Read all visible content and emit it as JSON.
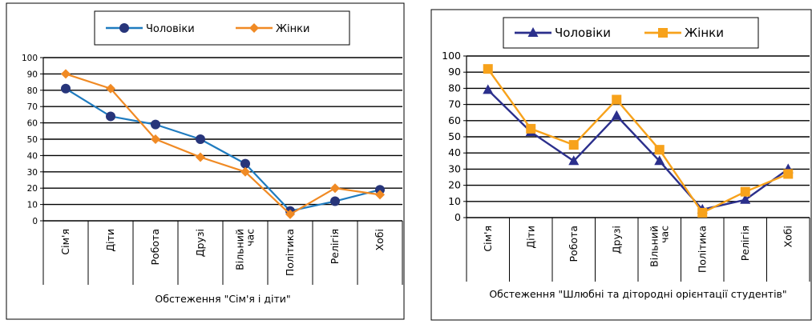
{
  "chart_data": [
    {
      "type": "line",
      "title": "",
      "xlabel": "Обстеження \"Сім'я і діти\"",
      "ylabel": "",
      "ylim": [
        0,
        100
      ],
      "yticks": [
        0,
        10,
        20,
        30,
        40,
        50,
        60,
        70,
        80,
        90,
        100
      ],
      "categories": [
        "Сім'я",
        "Діти",
        "Робота",
        "Друзі",
        "Вільний час",
        "Політика",
        "Релігія",
        "Хобі"
      ],
      "category_lines": [
        [
          "Сім'я"
        ],
        [
          "Діти"
        ],
        [
          "Робота"
        ],
        [
          "Друзі"
        ],
        [
          "Вільний",
          "час"
        ],
        [
          "Політика"
        ],
        [
          "Релігія"
        ],
        [
          "Хобі"
        ]
      ],
      "legend_position": "top",
      "grid": true,
      "series": [
        {
          "name": "Чоловіки",
          "color": "#1f7bbf",
          "marker": "circle-dark-navy",
          "values": [
            81,
            64,
            59,
            50,
            35,
            6,
            12,
            19
          ]
        },
        {
          "name": "Жінки",
          "color": "#f08a24",
          "marker": "diamond-orange",
          "values": [
            90,
            81,
            50,
            39,
            30,
            4,
            20,
            16
          ]
        }
      ]
    },
    {
      "type": "line",
      "title": "",
      "xlabel": "Обстеження \"Шлюбні та дітородні орієнтації студентів\"",
      "ylabel": "",
      "ylim": [
        0,
        100
      ],
      "yticks": [
        0,
        10,
        20,
        30,
        40,
        50,
        60,
        70,
        80,
        90,
        100
      ],
      "categories": [
        "Сім'я",
        "Діти",
        "Робота",
        "Друзі",
        "Вільний час",
        "Політика",
        "Релігія",
        "Хобі"
      ],
      "category_lines": [
        [
          "Сім'я"
        ],
        [
          "Діти"
        ],
        [
          "Робота"
        ],
        [
          "Друзі"
        ],
        [
          "Вільний",
          "час"
        ],
        [
          "Політика"
        ],
        [
          "Релігія"
        ],
        [
          "Хобі"
        ]
      ],
      "legend_position": "top",
      "grid": true,
      "series": [
        {
          "name": "Чоловіки",
          "color": "#2b2f8c",
          "marker": "triangle-navy",
          "values": [
            79,
            53,
            35,
            63,
            35,
            5,
            11,
            30
          ]
        },
        {
          "name": "Жінки",
          "color": "#f7a21b",
          "marker": "square-orange",
          "values": [
            92,
            55,
            45,
            73,
            42,
            3,
            16,
            27
          ]
        }
      ]
    }
  ]
}
